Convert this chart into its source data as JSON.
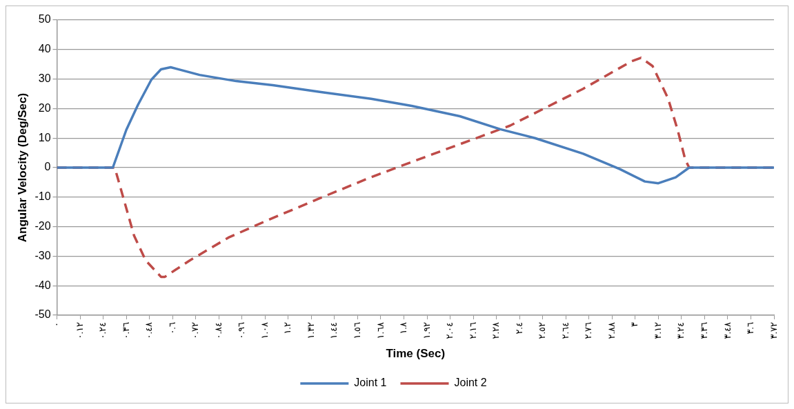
{
  "chart_data": {
    "type": "line",
    "xlabel": "Time (Sec)",
    "ylabel": "Angular Velocity (Deg/Sec)",
    "xlim": [
      0,
      3.72
    ],
    "xticks": [
      {
        "value": 0,
        "label": "٠"
      },
      {
        "value": 0.12,
        "label": "٠.١٢"
      },
      {
        "value": 0.24,
        "label": "٠.٢٤"
      },
      {
        "value": 0.36,
        "label": "٠.٣٦"
      },
      {
        "value": 0.48,
        "label": "٠.٤٨"
      },
      {
        "value": 0.6,
        "label": "٠.٦"
      },
      {
        "value": 0.72,
        "label": "٠.٧٢"
      },
      {
        "value": 0.84,
        "label": "٠.٨٤"
      },
      {
        "value": 0.96,
        "label": "٠.٩٦"
      },
      {
        "value": 1.08,
        "label": "١.٠٨"
      },
      {
        "value": 1.2,
        "label": "١.٢"
      },
      {
        "value": 1.32,
        "label": "١.٣٢"
      },
      {
        "value": 1.44,
        "label": "١.٤٤"
      },
      {
        "value": 1.56,
        "label": "١.٥٦"
      },
      {
        "value": 1.68,
        "label": "١.٦٨"
      },
      {
        "value": 1.8,
        "label": "١.٨"
      },
      {
        "value": 1.92,
        "label": "١.٩٢"
      },
      {
        "value": 2.04,
        "label": "٢.٠٤"
      },
      {
        "value": 2.16,
        "label": "٢.١٦"
      },
      {
        "value": 2.28,
        "label": "٢.٢٨"
      },
      {
        "value": 2.4,
        "label": "٢.٤"
      },
      {
        "value": 2.52,
        "label": "٢.٥٢"
      },
      {
        "value": 2.64,
        "label": "٢.٦٤"
      },
      {
        "value": 2.76,
        "label": "٢.٧٦"
      },
      {
        "value": 2.88,
        "label": "٢.٨٨"
      },
      {
        "value": 3,
        "label": "٣"
      },
      {
        "value": 3.12,
        "label": "٣.١٢"
      },
      {
        "value": 3.24,
        "label": "٣.٢٤"
      },
      {
        "value": 3.36,
        "label": "٣.٣٦"
      },
      {
        "value": 3.48,
        "label": "٣.٤٨"
      },
      {
        "value": 3.6,
        "label": "٣.٦"
      },
      {
        "value": 3.72,
        "label": "٣.٧٢"
      }
    ],
    "ylim": [
      -50,
      50
    ],
    "yticks": [
      -50,
      -40,
      -30,
      -20,
      -10,
      0,
      10,
      20,
      30,
      40,
      50
    ],
    "grid": "y",
    "legend": "bottom",
    "marker": "none",
    "series": [
      {
        "name": "Joint 1",
        "color": "#4a7ebb",
        "line_style": "solid",
        "x": [
          0,
          0.29,
          0.36,
          0.42,
          0.49,
          0.54,
          0.59,
          0.74,
          0.93,
          1.12,
          1.37,
          1.63,
          1.84,
          2.09,
          2.3,
          2.48,
          2.73,
          2.92,
          3.05,
          3.12,
          3.21,
          3.28,
          3.72
        ],
        "values": [
          0,
          0,
          12.8,
          21.2,
          29.8,
          33.3,
          34,
          31.4,
          29.3,
          27.9,
          25.6,
          23.3,
          20.9,
          17.4,
          13,
          10,
          4.7,
          -0.5,
          -4.7,
          -5.3,
          -3.3,
          0,
          0
        ]
      },
      {
        "name": "Joint 2",
        "color": "#be4b48",
        "line_style": "dashed",
        "x": [
          0,
          0.3,
          0.4,
          0.46,
          0.54,
          0.56,
          0.69,
          0.89,
          1.09,
          1.37,
          1.62,
          1.84,
          2.35,
          2.73,
          2.98,
          3.03,
          3.09,
          3.17,
          3.22,
          3.26,
          3.28,
          3.72
        ],
        "values": [
          0,
          0,
          -23,
          -31.4,
          -37,
          -37,
          -31.4,
          -23.7,
          -17.9,
          -10.2,
          -3.5,
          1.9,
          14.2,
          26.7,
          36,
          37.2,
          34.4,
          23.5,
          12.8,
          2.6,
          0,
          0
        ]
      }
    ]
  }
}
